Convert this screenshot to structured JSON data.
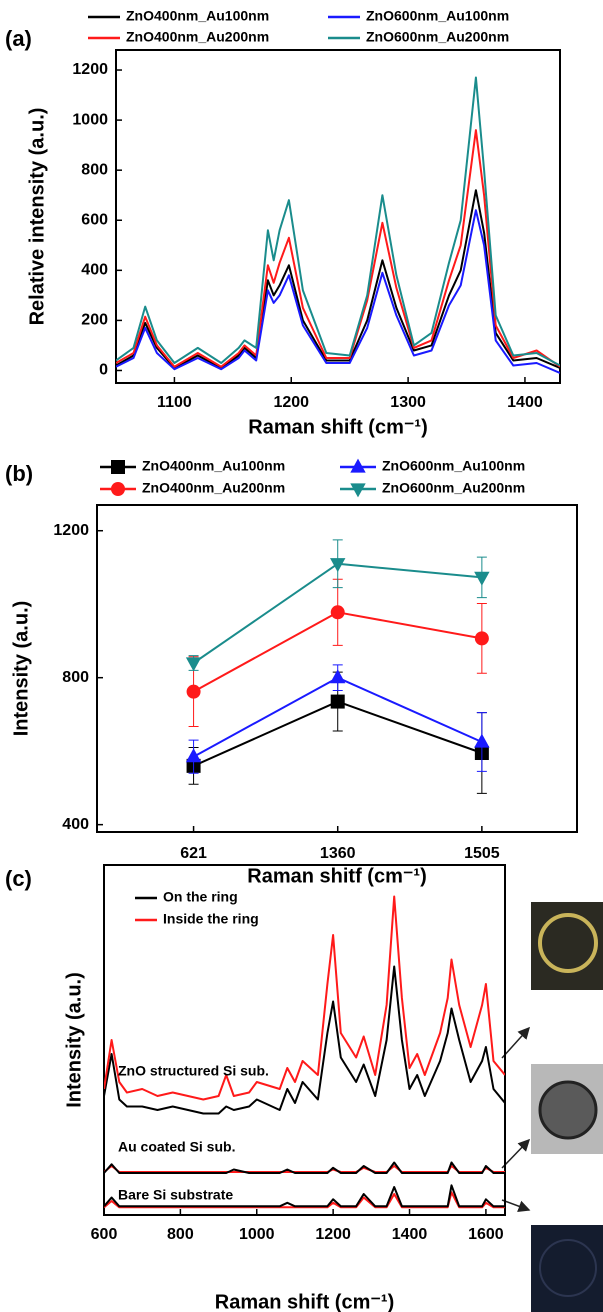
{
  "chart_data": [
    {
      "type": "line",
      "panel_label": "(a)",
      "x_label": "Raman shift (cm⁻¹)",
      "y_label": "Relative intensity (a.u.)",
      "xlim": [
        1050,
        1430
      ],
      "xticks": [
        1100,
        1200,
        1300,
        1400
      ],
      "ylim": [
        -50,
        1280
      ],
      "yticks": [
        0,
        200,
        400,
        600,
        800,
        1000,
        1200
      ],
      "x": [
        1050,
        1065,
        1075,
        1085,
        1100,
        1120,
        1140,
        1155,
        1160,
        1170,
        1180,
        1185,
        1190,
        1198,
        1210,
        1230,
        1250,
        1265,
        1278,
        1290,
        1305,
        1320,
        1335,
        1345,
        1358,
        1365,
        1375,
        1390,
        1410,
        1430
      ],
      "series": [
        {
          "name": "ZnO400nm_Au100nm",
          "color": "#000000",
          "values": [
            20,
            60,
            190,
            90,
            10,
            60,
            10,
            60,
            90,
            50,
            360,
            300,
            340,
            420,
            200,
            40,
            40,
            200,
            440,
            250,
            80,
            100,
            300,
            400,
            720,
            550,
            150,
            40,
            50,
            10
          ]
        },
        {
          "name": "ZnO400nm_Au200nm",
          "color": "#ff1a1a",
          "values": [
            30,
            70,
            215,
            100,
            15,
            70,
            15,
            70,
            100,
            60,
            420,
            350,
            430,
            530,
            250,
            50,
            50,
            280,
            590,
            330,
            90,
            120,
            360,
            500,
            960,
            700,
            180,
            50,
            80,
            15
          ]
        },
        {
          "name": "ZnO600nm_Au100nm",
          "color": "#1a1aff",
          "values": [
            15,
            50,
            170,
            70,
            5,
            50,
            5,
            50,
            80,
            40,
            320,
            270,
            300,
            380,
            180,
            30,
            30,
            170,
            390,
            220,
            60,
            80,
            260,
            340,
            640,
            500,
            120,
            20,
            30,
            -10
          ]
        },
        {
          "name": "ZnO600nm_Au200nm",
          "color": "#1a8c8c",
          "values": [
            40,
            90,
            255,
            120,
            30,
            90,
            30,
            90,
            120,
            90,
            560,
            440,
            560,
            680,
            320,
            70,
            60,
            300,
            700,
            380,
            100,
            150,
            430,
            600,
            1170,
            800,
            220,
            60,
            70,
            20
          ]
        }
      ]
    },
    {
      "type": "line",
      "panel_label": "(b)",
      "x_label": "Raman shitf (cm⁻¹)",
      "y_label": "Intensity (a.u.)",
      "categories": [
        "621",
        "1360",
        "1505"
      ],
      "ylim": [
        380,
        1270
      ],
      "yticks": [
        400,
        800,
        1200
      ],
      "series": [
        {
          "name": "ZnO400nm_Au100nm",
          "color": "#000000",
          "marker": "square",
          "values": [
            560,
            735,
            595
          ],
          "errors": [
            50,
            80,
            110
          ]
        },
        {
          "name": "ZnO400nm_Au200nm",
          "color": "#ff1a1a",
          "marker": "circle",
          "values": [
            762,
            978,
            907
          ],
          "errors": [
            95,
            90,
            95
          ]
        },
        {
          "name": "ZnO600nm_Au100nm",
          "color": "#1a1aff",
          "marker": "triangle-up",
          "values": [
            585,
            800,
            625
          ],
          "errors": [
            45,
            35,
            80
          ]
        },
        {
          "name": "ZnO600nm_Au200nm",
          "color": "#1a8c8c",
          "marker": "triangle-down",
          "values": [
            840,
            1110,
            1073
          ],
          "errors": [
            20,
            65,
            55
          ]
        }
      ]
    },
    {
      "type": "line",
      "panel_label": "(c)",
      "x_label": "Raman shift (cm⁻¹)",
      "y_label": "Intensity (a.u.)",
      "xlim": [
        600,
        1650
      ],
      "xticks": [
        600,
        800,
        1000,
        1200,
        1400,
        1600
      ],
      "ylim": [
        0,
        100
      ],
      "x": [
        600,
        620,
        640,
        660,
        700,
        740,
        780,
        820,
        860,
        900,
        920,
        940,
        980,
        1000,
        1060,
        1080,
        1100,
        1120,
        1160,
        1185,
        1200,
        1220,
        1260,
        1280,
        1310,
        1340,
        1360,
        1380,
        1400,
        1420,
        1440,
        1480,
        1500,
        1510,
        1530,
        1560,
        1590,
        1600,
        1620,
        1650
      ],
      "series": [
        {
          "name": "On the ring",
          "color": "#000000",
          "values": [
            34,
            46,
            33,
            31,
            31,
            30,
            31,
            30,
            29,
            29,
            31,
            30,
            31,
            33,
            30,
            36,
            32,
            38,
            33,
            52,
            61,
            45,
            38,
            43,
            34,
            50,
            71,
            50,
            36,
            40,
            34,
            44,
            52,
            59,
            50,
            38,
            44,
            48,
            36,
            32
          ]
        },
        {
          "name": "Inside the ring",
          "color": "#ff1a1a",
          "values": [
            36,
            50,
            38,
            35,
            36,
            34,
            35,
            34,
            33,
            34,
            40,
            34,
            35,
            38,
            36,
            42,
            38,
            44,
            40,
            66,
            80,
            52,
            45,
            51,
            40,
            60,
            91,
            62,
            42,
            46,
            40,
            52,
            62,
            73,
            60,
            48,
            60,
            66,
            44,
            40
          ]
        }
      ],
      "lower_traces": [
        {
          "color": "#ff1a1a",
          "values": [
            12.3,
            14,
            12.3,
            12.3,
            12.3,
            12.3,
            12.3,
            12.3,
            12.3,
            12.3,
            12.3,
            12.3,
            12.3,
            12.3,
            12.3,
            12.3,
            12.3,
            12.3,
            12.3,
            12.3,
            13,
            12.3,
            12.3,
            13.5,
            12.3,
            12.3,
            14,
            12.3,
            12.3,
            12.3,
            12.3,
            12.3,
            12.3,
            14,
            12.3,
            12.3,
            12.3,
            13.5,
            12.3,
            12.3
          ]
        },
        {
          "color": "#000000",
          "values": [
            12,
            14.5,
            12,
            12,
            12,
            12,
            12,
            12,
            12,
            12,
            12,
            13,
            12,
            12,
            12,
            13,
            12,
            12,
            12,
            12,
            13.5,
            12,
            12,
            14,
            12,
            12,
            15,
            12,
            12,
            12,
            12,
            12,
            12,
            15,
            12,
            12,
            12,
            14,
            12,
            12
          ]
        },
        {
          "color": "#ff1a1a",
          "values": [
            2.2,
            4,
            2.2,
            2.2,
            2.2,
            2.2,
            2.2,
            2.2,
            2.2,
            2.2,
            2.2,
            2.2,
            2.2,
            2.2,
            2.2,
            2.2,
            2.2,
            2.2,
            2.2,
            2.2,
            3.5,
            2.2,
            2.2,
            5,
            2.2,
            2.2,
            6,
            2.2,
            2.2,
            2.2,
            2.2,
            2.2,
            2.2,
            6.5,
            2.2,
            2.2,
            2.2,
            3.5,
            2.2,
            2.2
          ]
        },
        {
          "color": "#000000",
          "values": [
            2.5,
            5,
            2.5,
            2.5,
            2.5,
            2.5,
            2.5,
            2.5,
            2.5,
            2.5,
            2.5,
            2.5,
            2.5,
            2.5,
            2.5,
            3.5,
            2.5,
            2.5,
            2.5,
            2.5,
            4.5,
            2.5,
            2.5,
            6,
            2.5,
            2.5,
            8,
            2.5,
            2.5,
            2.5,
            2.5,
            2.5,
            2.5,
            8.5,
            2.5,
            2.5,
            2.5,
            4.5,
            2.5,
            2.5
          ]
        }
      ],
      "annotations": [
        "ZnO structured Si sub.",
        "Au coated Si sub.",
        "Bare Si substrate"
      ]
    }
  ]
}
